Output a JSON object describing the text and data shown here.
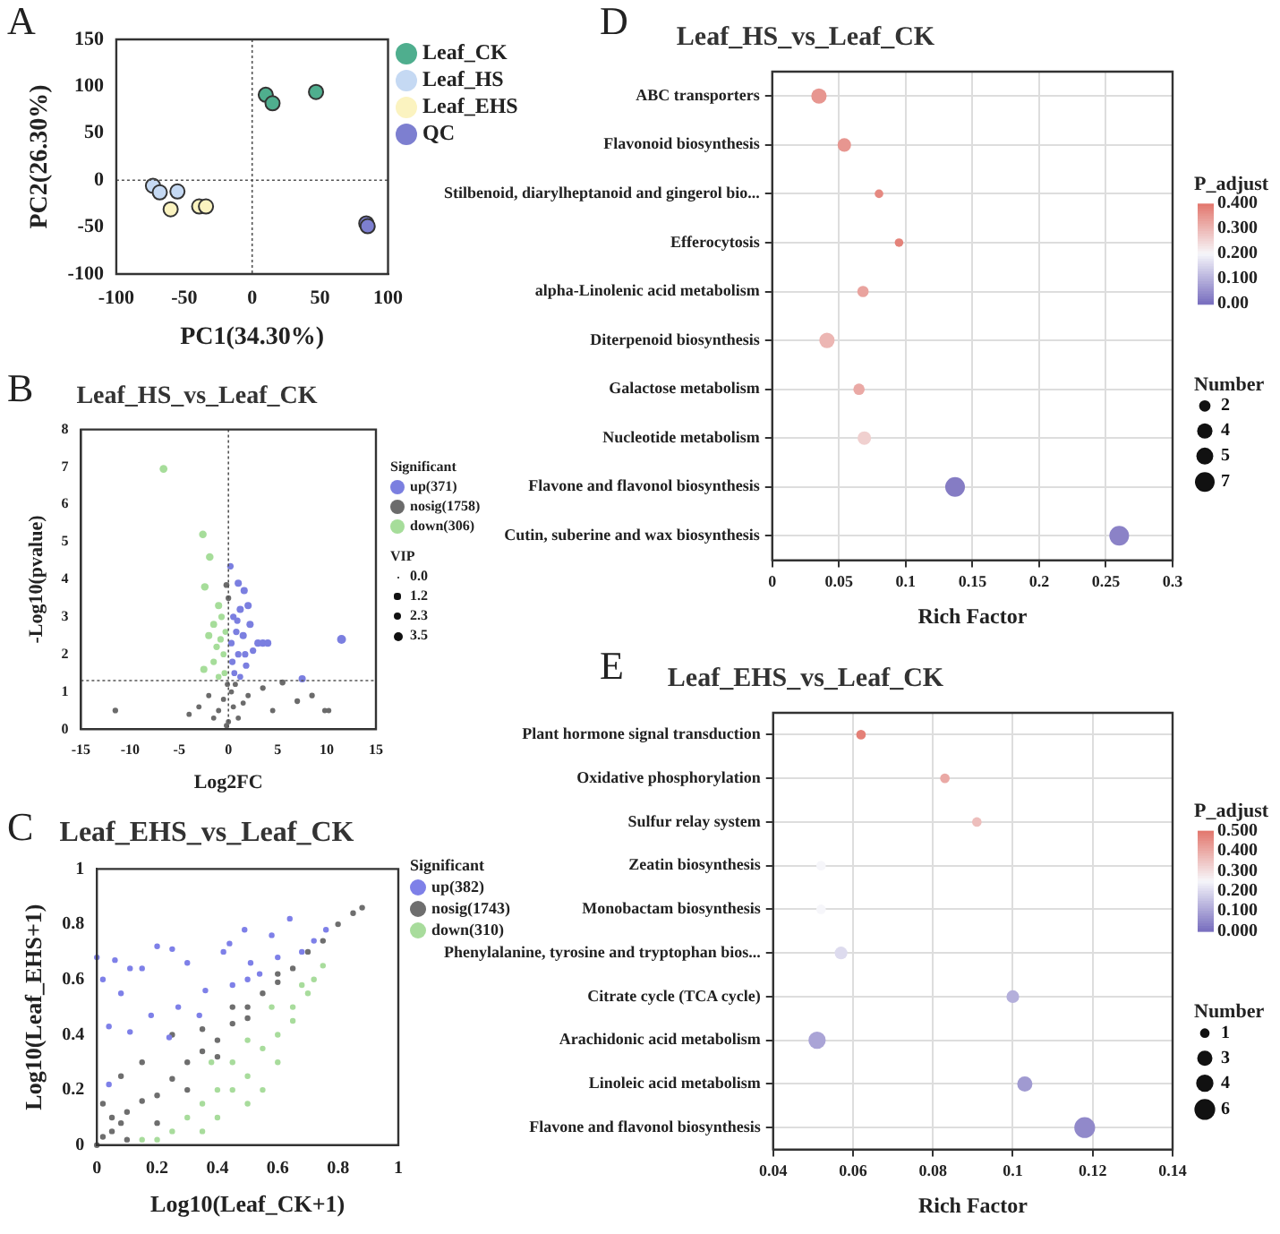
{
  "chart_data": [
    {
      "type": "scatter",
      "annotations": [
        "A"
      ],
      "xlabel": "PC1(34.30%)",
      "ylabel": "PC2(26.30%)",
      "xlim": [
        -100,
        100
      ],
      "xticks": [
        -100,
        -50,
        0,
        50,
        100
      ],
      "ylim": [
        -100,
        150
      ],
      "yticks": [
        -100,
        -50,
        0,
        50,
        100,
        150
      ],
      "legend": "right",
      "marker": "circle",
      "ref_lines": [
        {
          "axis": "x",
          "value": 0,
          "line_style": "dotted"
        },
        {
          "axis": "y",
          "value": 0,
          "line_style": "dotted"
        }
      ],
      "series": [
        {
          "name": "Leaf_CK",
          "color": "#4fae8e",
          "x": [
            10,
            15,
            47
          ],
          "values": [
            91,
            82,
            94
          ]
        },
        {
          "name": "Leaf_HS",
          "color": "#c5d9f3",
          "x": [
            -73,
            -68,
            -55
          ],
          "values": [
            -6,
            -13,
            -12
          ]
        },
        {
          "name": "Leaf_EHS",
          "color": "#fbf3c0",
          "x": [
            -60,
            -39,
            -34
          ],
          "values": [
            -31,
            -28,
            -28
          ]
        },
        {
          "name": "QC",
          "color": "#7d7fd0",
          "x": [
            84,
            85
          ],
          "values": [
            -46,
            -49
          ]
        }
      ]
    },
    {
      "type": "bubble",
      "title": "Leaf_HS_vs_Leaf_CK",
      "annotations": [
        "B",
        "VIP"
      ],
      "xlabel": "Log2FC",
      "ylabel": "-Log10(pvalue)",
      "xlim": [
        -15,
        15
      ],
      "xticks": [
        -15,
        -10,
        -5,
        0,
        5,
        10,
        15
      ],
      "ylim": [
        0,
        8
      ],
      "yticks": [
        0,
        1,
        2,
        3,
        4,
        5,
        6,
        7,
        8
      ],
      "legend": "right",
      "legend_title": "Significant",
      "marker": "circle",
      "size_legend": [
        {
          "value": 0,
          "label": "0.0"
        },
        1.2,
        2.3,
        3.5
      ],
      "ref_lines": [
        {
          "axis": "x",
          "value": 0,
          "line_style": "dotted"
        },
        {
          "axis": "y",
          "value": 1.3,
          "line_style": "dotted"
        }
      ],
      "series": [
        {
          "name": "up(371)",
          "color": "#7b7fe0",
          "x": [
            0.2,
            1,
            1.6,
            2,
            1.2,
            0.5,
            2.2,
            0.8,
            1.5,
            3,
            3.5,
            4,
            2.5,
            1,
            0.4,
            1.8,
            0.6,
            1.2,
            7.5,
            11.5,
            0.3,
            0.9,
            1.7
          ],
          "values": [
            4.35,
            3.9,
            3.7,
            3.3,
            3.2,
            3.0,
            2.8,
            2.6,
            2.5,
            2.3,
            2.3,
            2.3,
            2.1,
            2.0,
            1.8,
            1.7,
            1.5,
            1.4,
            1.35,
            2.4,
            2.3,
            2.9,
            2.0
          ],
          "sizes": [
            1.5,
            2,
            2,
            2,
            2,
            1.5,
            2,
            1.5,
            2,
            2,
            2,
            2,
            1.5,
            1.5,
            1.5,
            1.5,
            1.2,
            1.2,
            2,
            3.5,
            1.5,
            1.5,
            1.5
          ]
        },
        {
          "name": "nosig(1758)",
          "color": "#6b6b6b",
          "x": [
            -0.2,
            0,
            -0.1,
            0.3,
            -0.5,
            0.5,
            -1,
            1,
            -0.2,
            0,
            -11.5,
            -4,
            -2,
            2,
            3.5,
            5.5,
            7,
            8.5,
            9.8,
            10.2,
            4.5,
            -1.5,
            1.5,
            -3,
            0.7
          ],
          "values": [
            3.85,
            3.5,
            1.2,
            1.0,
            0.8,
            0.6,
            0.5,
            0.3,
            0.1,
            0.2,
            0.5,
            0.4,
            0.9,
            0.9,
            1.1,
            1.25,
            0.75,
            0.9,
            0.5,
            0.5,
            0.5,
            0.3,
            0.7,
            0.6,
            1.2
          ],
          "sizes": [
            1.2,
            1,
            0.8,
            0.8,
            0.8,
            0.8,
            0.8,
            0.8,
            0.8,
            0.8,
            1,
            0.8,
            0.8,
            0.8,
            1,
            1.2,
            1,
            1,
            0.8,
            0.8,
            0.8,
            0.8,
            0.8,
            0.8,
            0.8
          ]
        },
        {
          "name": "down(306)",
          "color": "#a6dd9a",
          "x": [
            -6.6,
            -2.6,
            -1.9,
            -2.4,
            -1,
            -0.7,
            -1.5,
            -0.3,
            -2,
            -1.2,
            -0.5,
            -2.5,
            -0.4,
            -1,
            -1.5,
            -0.8
          ],
          "values": [
            6.95,
            5.2,
            4.6,
            3.8,
            3.3,
            3.0,
            2.8,
            2.6,
            2.5,
            2.2,
            2.0,
            1.6,
            1.5,
            1.4,
            1.8,
            2.4
          ],
          "sizes": [
            2.5,
            2.3,
            2.3,
            2.3,
            2,
            1.5,
            1.8,
            1.2,
            2,
            1.5,
            1.2,
            2,
            1.2,
            1.2,
            1.5,
            1.5
          ]
        }
      ]
    },
    {
      "type": "scatter",
      "title": "Leaf_EHS_vs_Leaf_CK",
      "annotations": [
        "C"
      ],
      "xlabel": "Log10(Leaf_CK+1)",
      "ylabel": "Log10(Leaf_EHS+1)",
      "xlim": [
        0,
        1
      ],
      "xticks": [
        0,
        0.2,
        0.4,
        0.6,
        0.8,
        1
      ],
      "ylim": [
        0,
        1
      ],
      "yticks": [
        0,
        0.2,
        0.4,
        0.6,
        0.8,
        1
      ],
      "legend": "right",
      "legend_title": "Significant",
      "marker": "circle",
      "series": [
        {
          "name": "up(382)",
          "color": "#7e80e8",
          "x": [
            0,
            0.02,
            0.06,
            0.08,
            0.04,
            0.04,
            0.11,
            0.15,
            0.2,
            0.25,
            0.3,
            0.36,
            0.42,
            0.44,
            0.49,
            0.64,
            0.58,
            0.51,
            0.54,
            0.6,
            0.68,
            0.34,
            0.27,
            0.18,
            0.11,
            0.45,
            0.5,
            0.72,
            0.76,
            0.24
          ],
          "values": [
            0.68,
            0.6,
            0.67,
            0.55,
            0.43,
            0.22,
            0.64,
            0.64,
            0.72,
            0.71,
            0.66,
            0.56,
            0.7,
            0.73,
            0.78,
            0.82,
            0.76,
            0.66,
            0.62,
            0.68,
            0.7,
            0.47,
            0.5,
            0.47,
            0.41,
            0.58,
            0.6,
            0.74,
            0.78,
            0.39
          ]
        },
        {
          "name": "nosig(1743)",
          "color": "#6e6e6e",
          "x": [
            0,
            0.02,
            0.05,
            0.08,
            0.1,
            0.15,
            0.2,
            0.25,
            0.3,
            0.35,
            0.4,
            0.45,
            0.5,
            0.55,
            0.6,
            0.65,
            0.7,
            0.75,
            0.8,
            0.85,
            0.88,
            0.02,
            0.08,
            0.15,
            0.25,
            0.35,
            0.3,
            0.4,
            0.1,
            0.2,
            0.5,
            0.6,
            0.45,
            0.05
          ],
          "values": [
            0,
            0.03,
            0.05,
            0.08,
            0.12,
            0.16,
            0.18,
            0.24,
            0.3,
            0.34,
            0.38,
            0.44,
            0.5,
            0.55,
            0.59,
            0.64,
            0.7,
            0.74,
            0.8,
            0.84,
            0.86,
            0.15,
            0.25,
            0.3,
            0.4,
            0.42,
            0.2,
            0.32,
            0.02,
            0.08,
            0.46,
            0.62,
            0.5,
            0.1
          ]
        },
        {
          "name": "down(310)",
          "color": "#a8dc9c",
          "x": [
            0.2,
            0.25,
            0.35,
            0.4,
            0.45,
            0.5,
            0.55,
            0.6,
            0.65,
            0.7,
            0.72,
            0.75,
            0.4,
            0.35,
            0.5,
            0.55,
            0.6,
            0.65,
            0.45,
            0.5,
            0.58,
            0.68,
            0.38,
            0.3,
            0.15
          ],
          "values": [
            0.02,
            0.05,
            0.05,
            0.1,
            0.2,
            0.25,
            0.35,
            0.4,
            0.45,
            0.55,
            0.6,
            0.65,
            0.2,
            0.15,
            0.15,
            0.2,
            0.3,
            0.5,
            0.3,
            0.38,
            0.5,
            0.58,
            0.3,
            0.1,
            0.02
          ]
        }
      ]
    },
    {
      "type": "bubble",
      "orientation": "horizontal",
      "title": "Leaf_HS_vs_Leaf_CK",
      "annotations": [
        "D",
        "Number"
      ],
      "xlabel": "Rich Factor",
      "clabel": "P_adjust",
      "grid": true,
      "marker": "circle",
      "categories": [
        "ABC transporters",
        "Flavonoid biosynthesis",
        "Stilbenoid, diarylheptanoid and gingerol bio...",
        "Efferocytosis",
        "alpha-Linolenic acid metabolism",
        "Diterpenoid biosynthesis",
        "Galactose metabolism",
        "Nucleotide metabolism",
        "Flavone and flavonol biosynthesis",
        "Cutin, suberine and wax biosynthesis"
      ],
      "values": [
        0.035,
        0.054,
        0.08,
        0.095,
        0.068,
        0.041,
        0.065,
        0.069,
        0.137,
        0.26
      ],
      "sizes": [
        4,
        3,
        1,
        1,
        2,
        4,
        2,
        3,
        7,
        7
      ],
      "cvalues": [
        0.35,
        0.35,
        0.37,
        0.38,
        0.33,
        0.3,
        0.32,
        0.26,
        0.02,
        0.03
      ],
      "size_legend": [
        2,
        4,
        5,
        7
      ],
      "xlim": [
        0,
        0.3
      ],
      "xticks": [
        0,
        0.05,
        0.1,
        0.15,
        0.2,
        0.25,
        0.3
      ],
      "clim": [
        0,
        0.4
      ],
      "cticks": [
        {
          "value": 0,
          "label": "0.00"
        },
        {
          "value": 0.1,
          "label": "0.100"
        },
        {
          "value": 0.2,
          "label": "0.200"
        },
        {
          "value": 0.3,
          "label": "0.300"
        },
        {
          "value": 0.4,
          "label": "0.400"
        }
      ]
    },
    {
      "type": "bubble",
      "orientation": "horizontal",
      "title": "Leaf_EHS_vs_Leaf_CK",
      "annotations": [
        "E",
        "Number"
      ],
      "xlabel": "Rich Factor",
      "clabel": "P_adjust",
      "grid": true,
      "marker": "circle",
      "categories": [
        "Plant hormone signal transduction",
        "Oxidative phosphorylation",
        "Sulfur relay system",
        "Zeatin biosynthesis",
        "Monobactam biosynthesis",
        "Phenylalanine, tyrosine and tryptophan bios...",
        "Citrate cycle (TCA cycle)",
        "Arachidonic acid metabolism",
        "Linoleic acid metabolism",
        "Flavone and flavonol biosynthesis"
      ],
      "values": [
        0.062,
        0.083,
        0.091,
        0.052,
        0.052,
        0.057,
        0.1,
        0.051,
        0.103,
        0.118
      ],
      "sizes": [
        1,
        1,
        1,
        1,
        1,
        2,
        2,
        4,
        3,
        6
      ],
      "cvalues": [
        0.48,
        0.4,
        0.36,
        0.25,
        0.25,
        0.2,
        0.12,
        0.1,
        0.08,
        0.05
      ],
      "size_legend": [
        1,
        3,
        4,
        6
      ],
      "xlim": [
        0.04,
        0.14
      ],
      "xticks": [
        0.04,
        0.06,
        0.08,
        0.1,
        0.12,
        0.14
      ],
      "clim": [
        0,
        0.5
      ],
      "cticks": [
        {
          "value": 0,
          "label": "0.000"
        },
        {
          "value": 0.1,
          "label": "0.100"
        },
        {
          "value": 0.2,
          "label": "0.200"
        },
        {
          "value": 0.3,
          "label": "0.300"
        },
        {
          "value": 0.4,
          "label": "0.400"
        },
        {
          "value": 0.5,
          "label": "0.500"
        }
      ]
    }
  ]
}
